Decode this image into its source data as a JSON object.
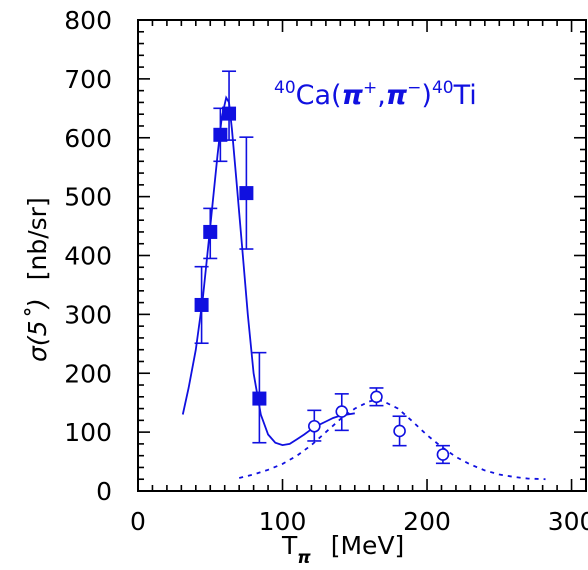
{
  "chart_data": {
    "type": "scatter",
    "annotation": {
      "prefix_sup": "40",
      "element": "Ca(",
      "pi1": "π",
      "plus": "+",
      "comma": ",",
      "pi2": "π",
      "minus": "−",
      "close": ")",
      "suffix_sup": "40",
      "product": "Ti",
      "color": "#1010e0"
    },
    "xlabel": {
      "main": "T",
      "sub": "π",
      "unit": "[MeV]"
    },
    "ylabel": {
      "main": "σ(5˚)",
      "unit": "[nb/sr]"
    },
    "xlim": [
      0,
      310
    ],
    "ylim": [
      0,
      800
    ],
    "xticks": [
      0,
      100,
      200,
      300
    ],
    "yticks": [
      0,
      100,
      200,
      300,
      400,
      500,
      600,
      700,
      800
    ],
    "series": [
      {
        "marker": "filled-square",
        "color": "#1010e0",
        "x": [
          44,
          50,
          57,
          63,
          75,
          84
        ],
        "y": [
          316,
          440,
          605,
          641,
          506,
          157
        ],
        "yerr_low": [
          65,
          45,
          45,
          45,
          95,
          75
        ],
        "yerr_high": [
          65,
          40,
          45,
          72,
          95,
          78
        ]
      },
      {
        "marker": "open-circle",
        "color": "#1010e0",
        "x": [
          122,
          141,
          165,
          181,
          211
        ],
        "y": [
          110,
          135,
          160,
          102,
          62
        ],
        "yerr_low": [
          25,
          32,
          15,
          25,
          15
        ],
        "yerr_high": [
          27,
          30,
          15,
          25,
          15
        ]
      }
    ],
    "curves": [
      {
        "style": "solid",
        "color": "#1010e0",
        "x": [
          31,
          35,
          40,
          45,
          50,
          55,
          58,
          61,
          63,
          65,
          68,
          72,
          76,
          80,
          85,
          90,
          95,
          100,
          105,
          110,
          115,
          120,
          125,
          130,
          135,
          140,
          145,
          150
        ],
        "y": [
          130,
          175,
          240,
          330,
          450,
          570,
          635,
          668,
          660,
          615,
          530,
          415,
          300,
          200,
          130,
          96,
          82,
          78,
          80,
          88,
          96,
          105,
          112,
          118,
          124,
          128,
          130,
          132
        ]
      },
      {
        "style": "dashed",
        "color": "#1010e0",
        "x": [
          70,
          80,
          90,
          100,
          110,
          120,
          130,
          140,
          150,
          160,
          165,
          170,
          180,
          190,
          200,
          210,
          220,
          230,
          240,
          250,
          260,
          270,
          282
        ],
        "y": [
          22,
          28,
          36,
          46,
          60,
          78,
          100,
          122,
          140,
          152,
          155,
          152,
          140,
          118,
          95,
          75,
          58,
          45,
          35,
          28,
          24,
          21,
          20
        ]
      }
    ]
  }
}
